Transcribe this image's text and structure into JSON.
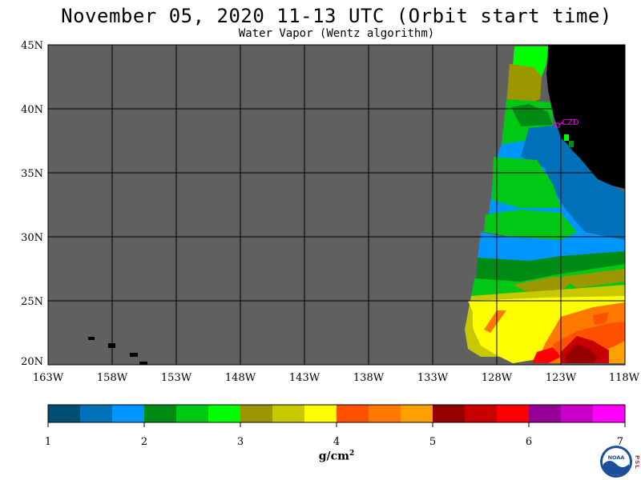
{
  "title": "November 05, 2020  11-13 UTC  (Orbit start time)",
  "subtitle": "Water Vapor (Wentz algorithm)",
  "map": {
    "lat_labels": [
      "45N",
      "40N",
      "35N",
      "30N",
      "25N",
      "20N"
    ],
    "lon_labels": [
      "163W",
      "158W",
      "153W",
      "148W",
      "143W",
      "138W",
      "133W",
      "128W",
      "123W",
      "118W"
    ],
    "station_label": "CZD",
    "colors": {
      "no_data": "#606060",
      "land": "#000000",
      "grid": "#000000",
      "station": "#ff00ff"
    }
  },
  "colorbar": {
    "colors": [
      "#004f73",
      "#0070b8",
      "#0096ff",
      "#008c14",
      "#00c814",
      "#00ff00",
      "#9c9600",
      "#c8c800",
      "#ffff00",
      "#ff5000",
      "#ff7800",
      "#ffa000",
      "#960000",
      "#c80000",
      "#ff0000",
      "#960096",
      "#c800c8",
      "#ff00ff"
    ],
    "tick_labels": [
      "1",
      "2",
      "3",
      "4",
      "5",
      "6",
      "7"
    ],
    "unit": "g/cm",
    "unit_exp": "2"
  },
  "logos": {
    "noaa_text": "NOAA",
    "psl_text": "PSL"
  }
}
